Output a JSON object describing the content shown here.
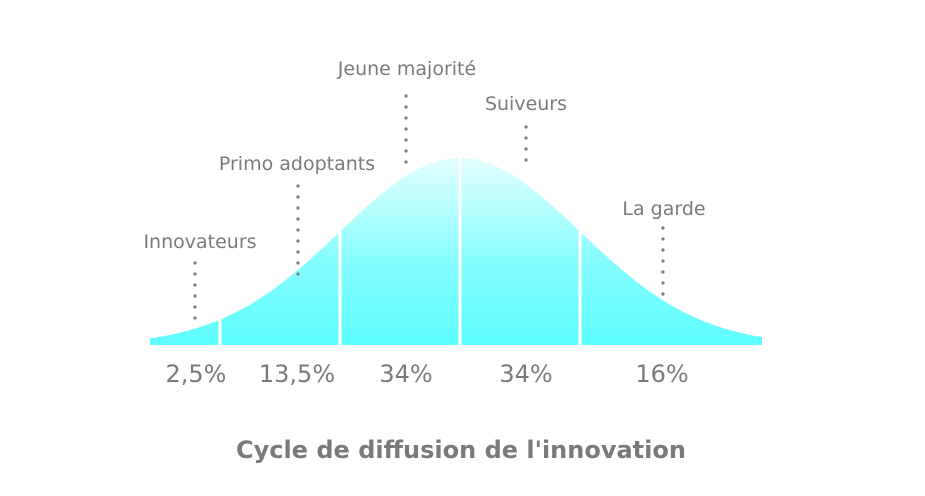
{
  "title": "Cycle de diffusion de l'innovation",
  "colors": {
    "curve_top": "#e4feff",
    "curve_bottom": "#5dfdff",
    "text": "#7a7a7a",
    "dots": "#7a7a7a"
  },
  "segments": [
    {
      "label": "Innovateurs",
      "percent": "2,5%",
      "share": 2.5
    },
    {
      "label": "Primo adoptants",
      "percent": "13,5%",
      "share": 13.5
    },
    {
      "label": "Jeune majorité",
      "percent": "34%",
      "share": 34
    },
    {
      "label": "Suiveurs",
      "percent": "34%",
      "share": 34
    },
    {
      "label": "La garde",
      "percent": "16%",
      "share": 16
    }
  ]
}
